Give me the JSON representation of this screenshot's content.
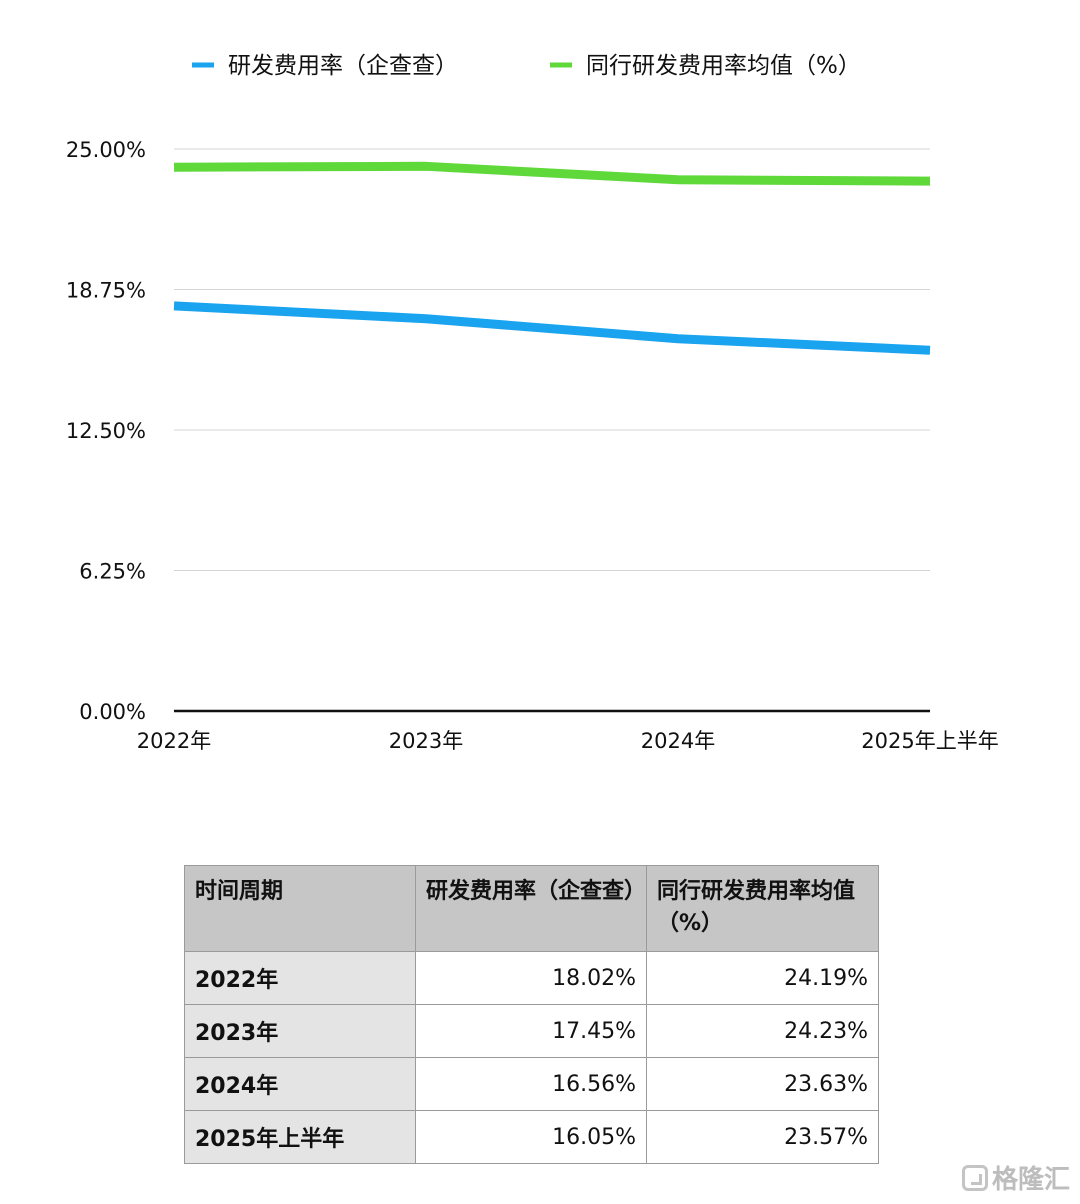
{
  "chart_data": {
    "type": "line",
    "categories": [
      "2022年",
      "2023年",
      "2024年",
      "2025年上半年"
    ],
    "series": [
      {
        "name": "研发费用率（企查查）",
        "values": [
          18.02,
          17.45,
          16.56,
          16.05
        ],
        "color": "#1aa3ef"
      },
      {
        "name": "同行研发费用率均值（%）",
        "values": [
          24.19,
          24.23,
          23.63,
          23.57
        ],
        "color": "#5fd83a"
      }
    ],
    "y_ticks": [
      "0.00%",
      "6.25%",
      "12.50%",
      "18.75%",
      "25.00%"
    ],
    "ylim": [
      0,
      25
    ],
    "grid": true,
    "legend_position": "top"
  },
  "table": {
    "headers": [
      "时间周期",
      "研发费用率（企查查）",
      "同行研发费用率均值（%）"
    ],
    "rows": [
      {
        "period": "2022年",
        "rd": "18.02%",
        "peer": "24.19%"
      },
      {
        "period": "2023年",
        "rd": "17.45%",
        "peer": "24.23%"
      },
      {
        "period": "2024年",
        "rd": "16.56%",
        "peer": "23.63%"
      },
      {
        "period": "2025年上半年",
        "rd": "16.05%",
        "peer": "23.57%"
      }
    ]
  },
  "watermark": {
    "text": "格隆汇",
    "icon": "gelonghui-logo-icon"
  }
}
